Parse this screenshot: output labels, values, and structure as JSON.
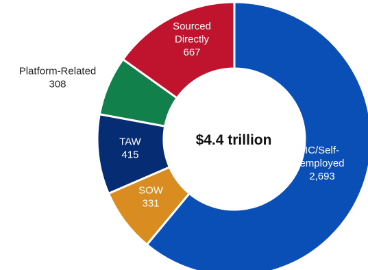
{
  "chart_data": {
    "type": "pie",
    "variant": "donut",
    "center_text": "$4.4 trillion",
    "categories": [
      "IC/Self-employed",
      "SOW",
      "TAW",
      "Platform-Related",
      "Sourced Directly"
    ],
    "slices": [
      {
        "label_lines": [
          "IC/Self-",
          "employed"
        ],
        "value_text": "2,693",
        "value": 2693,
        "color": "#0a4fb5",
        "label_color": "#ffffff",
        "label_outside": false
      },
      {
        "label_lines": [
          "SOW"
        ],
        "value_text": "331",
        "value": 331,
        "color": "#d98c1f",
        "label_color": "#ffffff",
        "label_outside": false
      },
      {
        "label_lines": [
          "TAW"
        ],
        "value_text": "415",
        "value": 415,
        "color": "#062d73",
        "label_color": "#ffffff",
        "label_outside": false
      },
      {
        "label_lines": [
          "Platform-Related"
        ],
        "value_text": "308",
        "value": 308,
        "color": "#12804a",
        "label_color": "#222222",
        "label_outside": true
      },
      {
        "label_lines": [
          "Sourced",
          "Directly"
        ],
        "value_text": "667",
        "value": 667,
        "color": "#c0142e",
        "label_color": "#ffffff",
        "label_outside": false
      }
    ],
    "legend": "none"
  }
}
